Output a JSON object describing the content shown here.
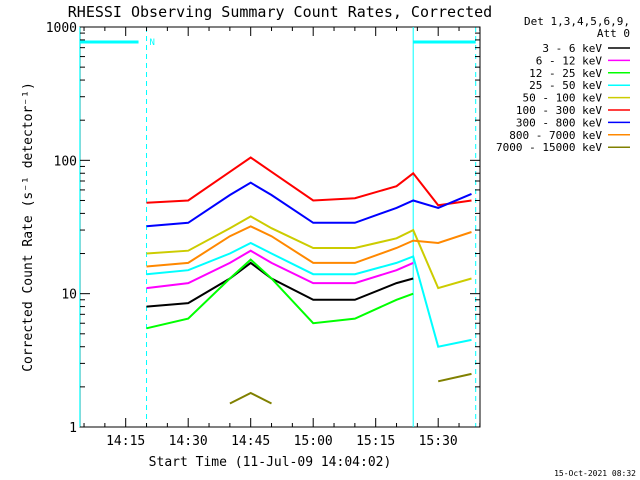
{
  "chart_data": {
    "type": "line",
    "title": "RHESSI Observing Summary Count Rates, Corrected",
    "xlabel": "Start Time (11-Jul-09 14:04:02)",
    "ylabel": "Corrected Count Rate (s⁻¹ detector⁻¹)",
    "yscale": "log",
    "ylim": [
      1,
      1000
    ],
    "xlim": [
      "14:04",
      "15:40"
    ],
    "x_ticks": [
      "14:15",
      "14:30",
      "14:45",
      "15:00",
      "15:15",
      "15:30"
    ],
    "y_ticks": [
      "1",
      "10",
      "100",
      "1000"
    ],
    "timestamp": "15-Oct-2021 08:32",
    "legend_header": [
      "Det 1,3,4,5,6,9,",
      "Att 0"
    ],
    "legend_position": "right",
    "annotations": {
      "night_marker": "N",
      "night_start": "14:04",
      "night_end": "14:20",
      "saa_start": "15:24",
      "saa_end": "15:39",
      "dashed_lines": [
        "14:20",
        "15:39"
      ],
      "solid_lines": [
        "14:04",
        "15:24"
      ]
    },
    "x": [
      "14:20",
      "14:30",
      "14:40",
      "14:45",
      "14:50",
      "15:00",
      "15:10",
      "15:20",
      "15:24",
      "15:30",
      "15:38"
    ],
    "series": [
      {
        "name": "3 - 6 keV",
        "color": "#000000",
        "values": [
          8,
          8.5,
          13,
          17,
          13,
          9,
          9,
          12,
          13,
          null,
          null
        ]
      },
      {
        "name": "6 - 12 keV",
        "color": "#ff00ff",
        "values": [
          11,
          12,
          17,
          21,
          17,
          12,
          12,
          15,
          17,
          null,
          null
        ]
      },
      {
        "name": "12 - 25 keV",
        "color": "#00ff00",
        "values": [
          5.5,
          6.5,
          13,
          18,
          13,
          6,
          6.5,
          9,
          10,
          null,
          null
        ]
      },
      {
        "name": "25 - 50 keV",
        "color": "#00ffff",
        "values": [
          14,
          15,
          20,
          24,
          20,
          14,
          14,
          17,
          19,
          4,
          4.5
        ]
      },
      {
        "name": "50 - 100 keV",
        "color": "#cccc00",
        "values": [
          20,
          21,
          31,
          38,
          31,
          22,
          22,
          26,
          30,
          11,
          13
        ]
      },
      {
        "name": "100 - 300 keV",
        "color": "#ff0000",
        "values": [
          48,
          50,
          82,
          105,
          82,
          50,
          52,
          64,
          80,
          46,
          50
        ]
      },
      {
        "name": "300 - 800 keV",
        "color": "#0000ff",
        "values": [
          32,
          34,
          55,
          68,
          55,
          34,
          34,
          44,
          50,
          44,
          56
        ]
      },
      {
        "name": "800 - 7000 keV",
        "color": "#ff8800",
        "values": [
          16,
          17,
          27,
          32,
          27,
          17,
          17,
          22,
          25,
          24,
          29
        ]
      },
      {
        "name": "7000 - 15000 keV",
        "color": "#808000",
        "values": [
          null,
          null,
          1.5,
          1.8,
          1.5,
          null,
          null,
          null,
          null,
          2.2,
          2.5
        ]
      }
    ]
  }
}
